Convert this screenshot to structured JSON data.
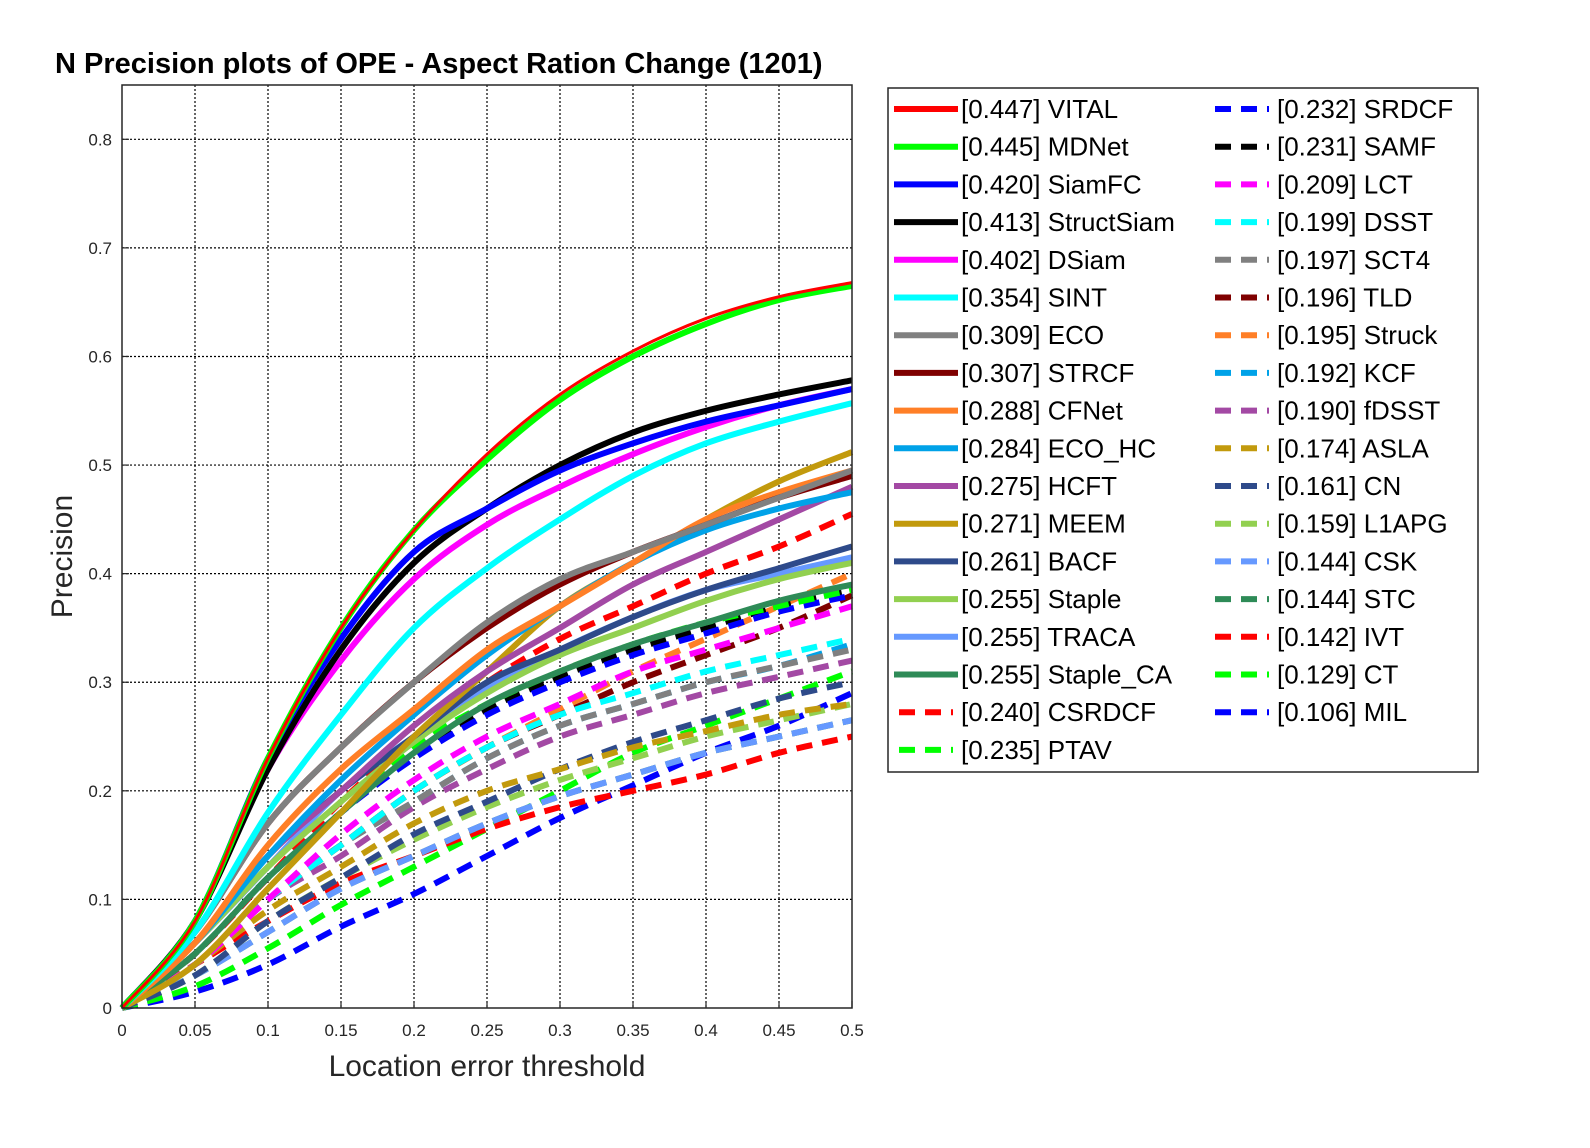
{
  "chart_data": {
    "type": "line",
    "title": "N Precision plots of OPE - Aspect Ration Change (1201)",
    "xlabel": "Location error threshold",
    "ylabel": "Precision",
    "xlim": [
      0,
      0.5
    ],
    "ylim": [
      0,
      0.85
    ],
    "xticks": [
      "0",
      "0.05",
      "0.1",
      "0.15",
      "0.2",
      "0.25",
      "0.3",
      "0.35",
      "0.4",
      "0.45",
      "0.5"
    ],
    "yticks": [
      "0",
      "0.1",
      "0.2",
      "0.3",
      "0.4",
      "0.5",
      "0.6",
      "0.7",
      "0.8"
    ],
    "grid": true,
    "legend_position": "outside-right",
    "series": [
      {
        "name": "[0.447] VITAL",
        "color": "#ff0000",
        "style": "solid",
        "x": [
          0,
          0.05,
          0.1,
          0.15,
          0.2,
          0.25,
          0.3,
          0.35,
          0.4,
          0.45,
          0.5
        ],
        "y": [
          0,
          0.08,
          0.23,
          0.35,
          0.44,
          0.51,
          0.565,
          0.605,
          0.635,
          0.655,
          0.668
        ]
      },
      {
        "name": "[0.445] MDNet",
        "color": "#00ff00",
        "style": "solid",
        "x": [
          0,
          0.05,
          0.1,
          0.15,
          0.2,
          0.25,
          0.3,
          0.35,
          0.4,
          0.45,
          0.5
        ],
        "y": [
          0,
          0.08,
          0.23,
          0.35,
          0.44,
          0.505,
          0.56,
          0.6,
          0.63,
          0.652,
          0.665
        ]
      },
      {
        "name": "[0.420] SiamFC",
        "color": "#0000ff",
        "style": "solid",
        "x": [
          0,
          0.05,
          0.1,
          0.15,
          0.2,
          0.25,
          0.3,
          0.35,
          0.4,
          0.45,
          0.5
        ],
        "y": [
          0,
          0.08,
          0.23,
          0.34,
          0.42,
          0.46,
          0.495,
          0.52,
          0.54,
          0.555,
          0.57
        ]
      },
      {
        "name": "[0.413] StructSiam",
        "color": "#000000",
        "style": "solid",
        "x": [
          0,
          0.05,
          0.1,
          0.15,
          0.2,
          0.25,
          0.3,
          0.35,
          0.4,
          0.45,
          0.5
        ],
        "y": [
          0,
          0.08,
          0.22,
          0.33,
          0.41,
          0.46,
          0.5,
          0.53,
          0.55,
          0.565,
          0.578
        ]
      },
      {
        "name": "[0.402] DSiam",
        "color": "#ff00ff",
        "style": "solid",
        "x": [
          0,
          0.05,
          0.1,
          0.15,
          0.2,
          0.25,
          0.3,
          0.35,
          0.4,
          0.45,
          0.5
        ],
        "y": [
          0,
          0.08,
          0.22,
          0.32,
          0.395,
          0.445,
          0.48,
          0.51,
          0.535,
          0.555,
          0.57
        ]
      },
      {
        "name": "[0.354] SINT",
        "color": "#00ffff",
        "style": "solid",
        "x": [
          0,
          0.05,
          0.1,
          0.15,
          0.2,
          0.25,
          0.3,
          0.35,
          0.4,
          0.45,
          0.5
        ],
        "y": [
          0,
          0.07,
          0.18,
          0.27,
          0.35,
          0.405,
          0.45,
          0.49,
          0.52,
          0.54,
          0.557
        ]
      },
      {
        "name": "[0.309] ECO",
        "color": "#808080",
        "style": "solid",
        "x": [
          0,
          0.05,
          0.1,
          0.15,
          0.2,
          0.25,
          0.3,
          0.35,
          0.4,
          0.45,
          0.5
        ],
        "y": [
          0,
          0.07,
          0.17,
          0.24,
          0.3,
          0.355,
          0.395,
          0.42,
          0.445,
          0.47,
          0.495
        ]
      },
      {
        "name": "[0.307] STRCF",
        "color": "#7f0000",
        "style": "solid",
        "x": [
          0,
          0.05,
          0.1,
          0.15,
          0.2,
          0.25,
          0.3,
          0.35,
          0.4,
          0.45,
          0.5
        ],
        "y": [
          0,
          0.07,
          0.17,
          0.24,
          0.3,
          0.35,
          0.39,
          0.42,
          0.445,
          0.47,
          0.49
        ]
      },
      {
        "name": "[0.288] CFNet",
        "color": "#ff7f27",
        "style": "solid",
        "x": [
          0,
          0.05,
          0.1,
          0.15,
          0.2,
          0.25,
          0.3,
          0.35,
          0.4,
          0.45,
          0.5
        ],
        "y": [
          0,
          0.06,
          0.15,
          0.22,
          0.275,
          0.33,
          0.37,
          0.41,
          0.45,
          0.475,
          0.495
        ]
      },
      {
        "name": "[0.284] ECO_HC",
        "color": "#00a2e8",
        "style": "solid",
        "x": [
          0,
          0.05,
          0.1,
          0.15,
          0.2,
          0.25,
          0.3,
          0.35,
          0.4,
          0.45,
          0.5
        ],
        "y": [
          0,
          0.06,
          0.14,
          0.21,
          0.27,
          0.325,
          0.37,
          0.41,
          0.44,
          0.46,
          0.475
        ]
      },
      {
        "name": "[0.275] HCFT",
        "color": "#a349a4",
        "style": "solid",
        "x": [
          0,
          0.05,
          0.1,
          0.15,
          0.2,
          0.25,
          0.3,
          0.35,
          0.4,
          0.45,
          0.5
        ],
        "y": [
          0,
          0.06,
          0.14,
          0.2,
          0.26,
          0.31,
          0.35,
          0.39,
          0.42,
          0.45,
          0.48
        ]
      },
      {
        "name": "[0.271] MEEM",
        "color": "#c29a0d",
        "style": "solid",
        "x": [
          0,
          0.05,
          0.1,
          0.15,
          0.2,
          0.25,
          0.3,
          0.35,
          0.4,
          0.45,
          0.5
        ],
        "y": [
          0,
          0.04,
          0.11,
          0.18,
          0.25,
          0.31,
          0.37,
          0.41,
          0.45,
          0.485,
          0.512
        ]
      },
      {
        "name": "[0.261] BACF",
        "color": "#2e4a8a",
        "style": "solid",
        "x": [
          0,
          0.05,
          0.1,
          0.15,
          0.2,
          0.25,
          0.3,
          0.35,
          0.4,
          0.45,
          0.5
        ],
        "y": [
          0,
          0.06,
          0.14,
          0.2,
          0.25,
          0.3,
          0.33,
          0.36,
          0.385,
          0.405,
          0.425
        ]
      },
      {
        "name": "[0.255] Staple",
        "color": "#92d050",
        "style": "solid",
        "x": [
          0,
          0.05,
          0.1,
          0.15,
          0.2,
          0.25,
          0.3,
          0.35,
          0.4,
          0.45,
          0.5
        ],
        "y": [
          0,
          0.06,
          0.13,
          0.19,
          0.245,
          0.29,
          0.325,
          0.35,
          0.375,
          0.395,
          0.41
        ]
      },
      {
        "name": "[0.255] TRACA",
        "color": "#6699ff",
        "style": "solid",
        "x": [
          0,
          0.05,
          0.1,
          0.15,
          0.2,
          0.25,
          0.3,
          0.35,
          0.4,
          0.45,
          0.5
        ],
        "y": [
          0,
          0.06,
          0.13,
          0.2,
          0.25,
          0.295,
          0.33,
          0.36,
          0.385,
          0.4,
          0.415
        ]
      },
      {
        "name": "[0.255] Staple_CA",
        "color": "#2e8b57",
        "style": "solid",
        "x": [
          0,
          0.05,
          0.1,
          0.15,
          0.2,
          0.25,
          0.3,
          0.35,
          0.4,
          0.45,
          0.5
        ],
        "y": [
          0,
          0.05,
          0.12,
          0.18,
          0.235,
          0.28,
          0.31,
          0.335,
          0.355,
          0.375,
          0.39
        ]
      },
      {
        "name": "[0.240] CSRDCF",
        "color": "#ff0000",
        "style": "dashed",
        "x": [
          0,
          0.05,
          0.1,
          0.15,
          0.2,
          0.25,
          0.3,
          0.35,
          0.4,
          0.45,
          0.5
        ],
        "y": [
          0,
          0.05,
          0.12,
          0.19,
          0.25,
          0.3,
          0.34,
          0.37,
          0.4,
          0.425,
          0.455
        ]
      },
      {
        "name": "[0.235] PTAV",
        "color": "#00ff00",
        "style": "dashed",
        "x": [
          0,
          0.05,
          0.1,
          0.15,
          0.2,
          0.25,
          0.3,
          0.35,
          0.4,
          0.45,
          0.5
        ],
        "y": [
          0,
          0.05,
          0.12,
          0.18,
          0.24,
          0.28,
          0.31,
          0.335,
          0.355,
          0.37,
          0.385
        ]
      },
      {
        "name": "[0.232] SRDCF",
        "color": "#0000ff",
        "style": "dashed",
        "x": [
          0,
          0.05,
          0.1,
          0.15,
          0.2,
          0.25,
          0.3,
          0.35,
          0.4,
          0.45,
          0.5
        ],
        "y": [
          0,
          0.05,
          0.12,
          0.18,
          0.23,
          0.27,
          0.3,
          0.325,
          0.345,
          0.365,
          0.38
        ]
      },
      {
        "name": "[0.231] SAMF",
        "color": "#000000",
        "style": "dashed",
        "x": [
          0,
          0.05,
          0.1,
          0.15,
          0.2,
          0.25,
          0.3,
          0.35,
          0.4,
          0.45,
          0.5
        ],
        "y": [
          0,
          0.05,
          0.12,
          0.18,
          0.235,
          0.275,
          0.305,
          0.33,
          0.35,
          0.37,
          0.385
        ]
      },
      {
        "name": "[0.209] LCT",
        "color": "#ff00ff",
        "style": "dashed",
        "x": [
          0,
          0.05,
          0.1,
          0.15,
          0.2,
          0.25,
          0.3,
          0.35,
          0.4,
          0.45,
          0.5
        ],
        "y": [
          0,
          0.04,
          0.1,
          0.16,
          0.21,
          0.25,
          0.28,
          0.31,
          0.33,
          0.35,
          0.37
        ]
      },
      {
        "name": "[0.199] DSST",
        "color": "#00ffff",
        "style": "dashed",
        "x": [
          0,
          0.05,
          0.1,
          0.15,
          0.2,
          0.25,
          0.3,
          0.35,
          0.4,
          0.45,
          0.5
        ],
        "y": [
          0,
          0.04,
          0.1,
          0.15,
          0.2,
          0.24,
          0.27,
          0.29,
          0.31,
          0.325,
          0.34
        ]
      },
      {
        "name": "[0.197] SCT4",
        "color": "#808080",
        "style": "dashed",
        "x": [
          0,
          0.05,
          0.1,
          0.15,
          0.2,
          0.25,
          0.3,
          0.35,
          0.4,
          0.45,
          0.5
        ],
        "y": [
          0,
          0.04,
          0.1,
          0.15,
          0.19,
          0.23,
          0.26,
          0.28,
          0.3,
          0.315,
          0.33
        ]
      },
      {
        "name": "[0.196] TLD",
        "color": "#7f0000",
        "style": "dashed",
        "x": [
          0,
          0.05,
          0.1,
          0.15,
          0.2,
          0.25,
          0.3,
          0.35,
          0.4,
          0.45,
          0.5
        ],
        "y": [
          0,
          0.04,
          0.1,
          0.15,
          0.2,
          0.24,
          0.27,
          0.3,
          0.325,
          0.35,
          0.38
        ]
      },
      {
        "name": "[0.195] Struck",
        "color": "#ff7f27",
        "style": "dashed",
        "x": [
          0,
          0.05,
          0.1,
          0.15,
          0.2,
          0.25,
          0.3,
          0.35,
          0.4,
          0.45,
          0.5
        ],
        "y": [
          0,
          0.04,
          0.1,
          0.15,
          0.2,
          0.24,
          0.275,
          0.31,
          0.34,
          0.37,
          0.4
        ]
      },
      {
        "name": "[0.192] KCF",
        "color": "#00a2e8",
        "style": "dashed",
        "x": [
          0,
          0.05,
          0.1,
          0.15,
          0.2,
          0.25,
          0.3,
          0.35,
          0.4,
          0.45,
          0.5
        ],
        "y": [
          0,
          0.04,
          0.1,
          0.15,
          0.19,
          0.23,
          0.26,
          0.28,
          0.3,
          0.315,
          0.335
        ]
      },
      {
        "name": "[0.190] fDSST",
        "color": "#a349a4",
        "style": "dashed",
        "x": [
          0,
          0.05,
          0.1,
          0.15,
          0.2,
          0.25,
          0.3,
          0.35,
          0.4,
          0.45,
          0.5
        ],
        "y": [
          0,
          0.04,
          0.1,
          0.14,
          0.185,
          0.22,
          0.25,
          0.27,
          0.29,
          0.305,
          0.32
        ]
      },
      {
        "name": "[0.174] ASLA",
        "color": "#c29a0d",
        "style": "dashed",
        "x": [
          0,
          0.05,
          0.1,
          0.15,
          0.2,
          0.25,
          0.3,
          0.35,
          0.4,
          0.45,
          0.5
        ],
        "y": [
          0,
          0.04,
          0.09,
          0.13,
          0.17,
          0.2,
          0.22,
          0.24,
          0.255,
          0.27,
          0.28
        ]
      },
      {
        "name": "[0.161] CN",
        "color": "#2e4a8a",
        "style": "dashed",
        "x": [
          0,
          0.05,
          0.1,
          0.15,
          0.2,
          0.25,
          0.3,
          0.35,
          0.4,
          0.45,
          0.5
        ],
        "y": [
          0,
          0.03,
          0.08,
          0.12,
          0.16,
          0.19,
          0.22,
          0.245,
          0.265,
          0.285,
          0.3
        ]
      },
      {
        "name": "[0.159] L1APG",
        "color": "#92d050",
        "style": "dashed",
        "x": [
          0,
          0.05,
          0.1,
          0.15,
          0.2,
          0.25,
          0.3,
          0.35,
          0.4,
          0.45,
          0.5
        ],
        "y": [
          0,
          0.03,
          0.08,
          0.12,
          0.155,
          0.185,
          0.21,
          0.23,
          0.25,
          0.265,
          0.28
        ]
      },
      {
        "name": "[0.144] CSK",
        "color": "#6699ff",
        "style": "dashed",
        "x": [
          0,
          0.05,
          0.1,
          0.15,
          0.2,
          0.25,
          0.3,
          0.35,
          0.4,
          0.45,
          0.5
        ],
        "y": [
          0,
          0.03,
          0.07,
          0.11,
          0.14,
          0.17,
          0.195,
          0.215,
          0.235,
          0.25,
          0.265
        ]
      },
      {
        "name": "[0.144] STC",
        "color": "#2e8b57",
        "style": "dashed",
        "x": [
          0,
          0.05,
          0.1,
          0.15,
          0.2,
          0.25,
          0.3,
          0.35,
          0.4,
          0.45,
          0.5
        ],
        "y": [
          0,
          0.03,
          0.07,
          0.11,
          0.14,
          0.17,
          0.195,
          0.215,
          0.235,
          0.25,
          0.265
        ]
      },
      {
        "name": "[0.142] IVT",
        "color": "#ff0000",
        "style": "dashed",
        "x": [
          0,
          0.05,
          0.1,
          0.15,
          0.2,
          0.25,
          0.3,
          0.35,
          0.4,
          0.45,
          0.5
        ],
        "y": [
          0,
          0.04,
          0.08,
          0.115,
          0.14,
          0.165,
          0.185,
          0.2,
          0.215,
          0.235,
          0.25
        ]
      },
      {
        "name": "[0.129] CT",
        "color": "#00ff00",
        "style": "dashed",
        "x": [
          0,
          0.05,
          0.1,
          0.15,
          0.2,
          0.25,
          0.3,
          0.35,
          0.4,
          0.45,
          0.5
        ],
        "y": [
          0,
          0.02,
          0.055,
          0.095,
          0.13,
          0.165,
          0.2,
          0.235,
          0.26,
          0.285,
          0.31
        ]
      },
      {
        "name": "[0.106] MIL",
        "color": "#0000ff",
        "style": "dashed",
        "x": [
          0,
          0.05,
          0.1,
          0.15,
          0.2,
          0.25,
          0.3,
          0.35,
          0.4,
          0.45,
          0.5
        ],
        "y": [
          0,
          0.015,
          0.04,
          0.075,
          0.105,
          0.14,
          0.175,
          0.205,
          0.235,
          0.26,
          0.29
        ]
      }
    ]
  }
}
